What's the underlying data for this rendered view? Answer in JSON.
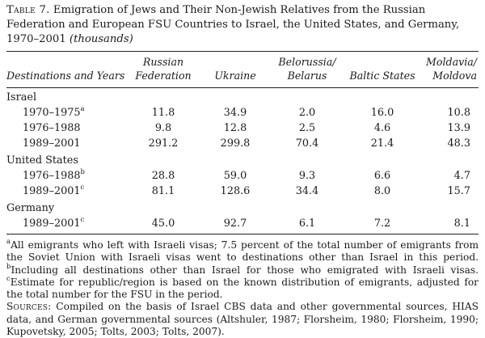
{
  "caption": {
    "label": "Table 7.",
    "text": " Emigration of Jews and Their Non-Jewish Relatives from the Russian Federation and European FSU Countries to Israel, the United States, and Germany, 1970–2001 ",
    "unit": "(thousands)"
  },
  "headers": {
    "dest": "Destinations and Years",
    "russia": [
      "Russian",
      "Federation"
    ],
    "ukraine": "Ukraine",
    "belarus": [
      "Belorussia/",
      "Belarus"
    ],
    "baltic": "Baltic States",
    "moldova": [
      "Moldavia/",
      "Moldova"
    ]
  },
  "groups": [
    {
      "name": "Israel",
      "rows": [
        {
          "label": "1970–1975",
          "sup": "a",
          "values": [
            "11.8",
            "34.9",
            "2.0",
            "16.0",
            "10.8"
          ]
        },
        {
          "label": "1976–1988",
          "sup": "",
          "values": [
            "9.8",
            "12.8",
            "2.5",
            "4.6",
            "13.9"
          ]
        },
        {
          "label": "1989–2001",
          "sup": "",
          "values": [
            "291.2",
            "299.8",
            "70.4",
            "21.4",
            "48.3"
          ]
        }
      ]
    },
    {
      "name": "United States",
      "rows": [
        {
          "label": "1976–1988",
          "sup": "b",
          "values": [
            "28.8",
            "59.0",
            "9.3",
            "6.6",
            "4.7"
          ]
        },
        {
          "label": "1989–2001",
          "sup": "c",
          "values": [
            "81.1",
            "128.6",
            "34.4",
            "8.0",
            "15.7"
          ]
        }
      ]
    },
    {
      "name": "Germany",
      "rows": [
        {
          "label": "1989–2001",
          "sup": "c",
          "values": [
            "45.0",
            "92.7",
            "6.1",
            "7.2",
            "8.1"
          ]
        }
      ]
    }
  ],
  "notes": {
    "a_mark": "a",
    "a_text": "All emigrants who left with Israeli visas; 7.5 percent of the total number of emigrants from the Soviet Union with Israeli visas went to destinations other than Israel in this period. ",
    "b_mark": "b",
    "b_text": "Including all destinations other than Israel for those who emigrated with Israeli visas. ",
    "c_mark": "c",
    "c_text": "Estimate for republic/region is based on the known distribution of emigrants, adjusted for the total number for the FSU in the period.",
    "sources_label": "Sources:",
    "sources_text": " Compiled on the basis of Israel CBS data and other governmental sources, HIAS data, and German governmental sources (Altshuler, 1987; Florsheim, 1980; Florsheim, 1990; Kupovetsky, 2005; Tolts, 2003; Tolts, 2007)."
  }
}
